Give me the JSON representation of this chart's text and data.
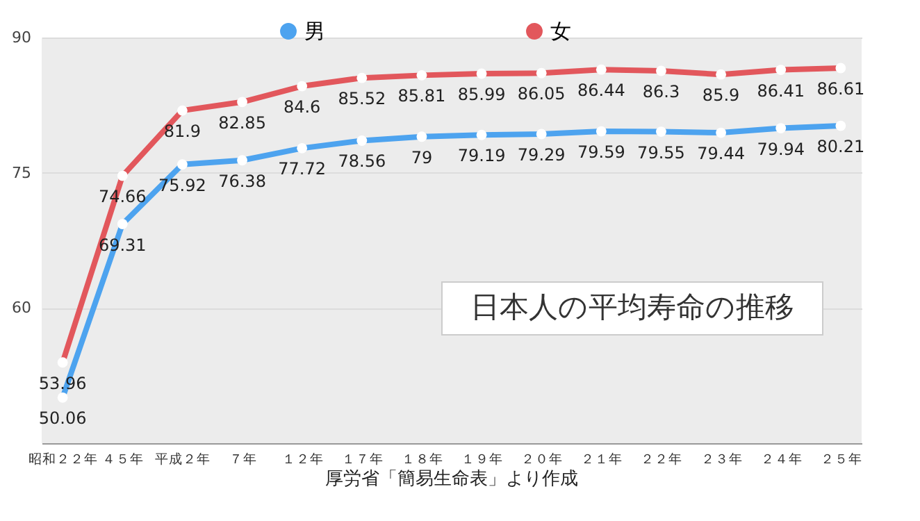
{
  "chart_data": {
    "type": "line",
    "title": "日本人の平均寿命の推移",
    "annotations": [
      "厚労省「簡易生命表」より作成"
    ],
    "categories": [
      "昭和２２年",
      "４５年",
      "平成２年",
      "７年",
      "１２年",
      "１７年",
      "１８年",
      "１９年",
      "２０年",
      "２１年",
      "２２年",
      "２３年",
      "２４年",
      "２５年"
    ],
    "series": [
      {
        "name": "男",
        "color": "#4da3ef",
        "values": [
          50.06,
          69.31,
          75.92,
          76.38,
          77.72,
          78.56,
          79,
          79.19,
          79.29,
          79.59,
          79.55,
          79.44,
          79.94,
          80.21
        ]
      },
      {
        "name": "女",
        "color": "#e2575c",
        "values": [
          53.96,
          74.66,
          81.9,
          82.85,
          84.6,
          85.52,
          85.81,
          85.99,
          86.05,
          86.44,
          86.3,
          85.9,
          86.41,
          86.61
        ]
      }
    ],
    "ylim": [
      45,
      90
    ],
    "yticks": [
      60,
      75,
      90
    ],
    "grid": "y",
    "legend": "top",
    "marker": "circle",
    "data_labels": true
  }
}
